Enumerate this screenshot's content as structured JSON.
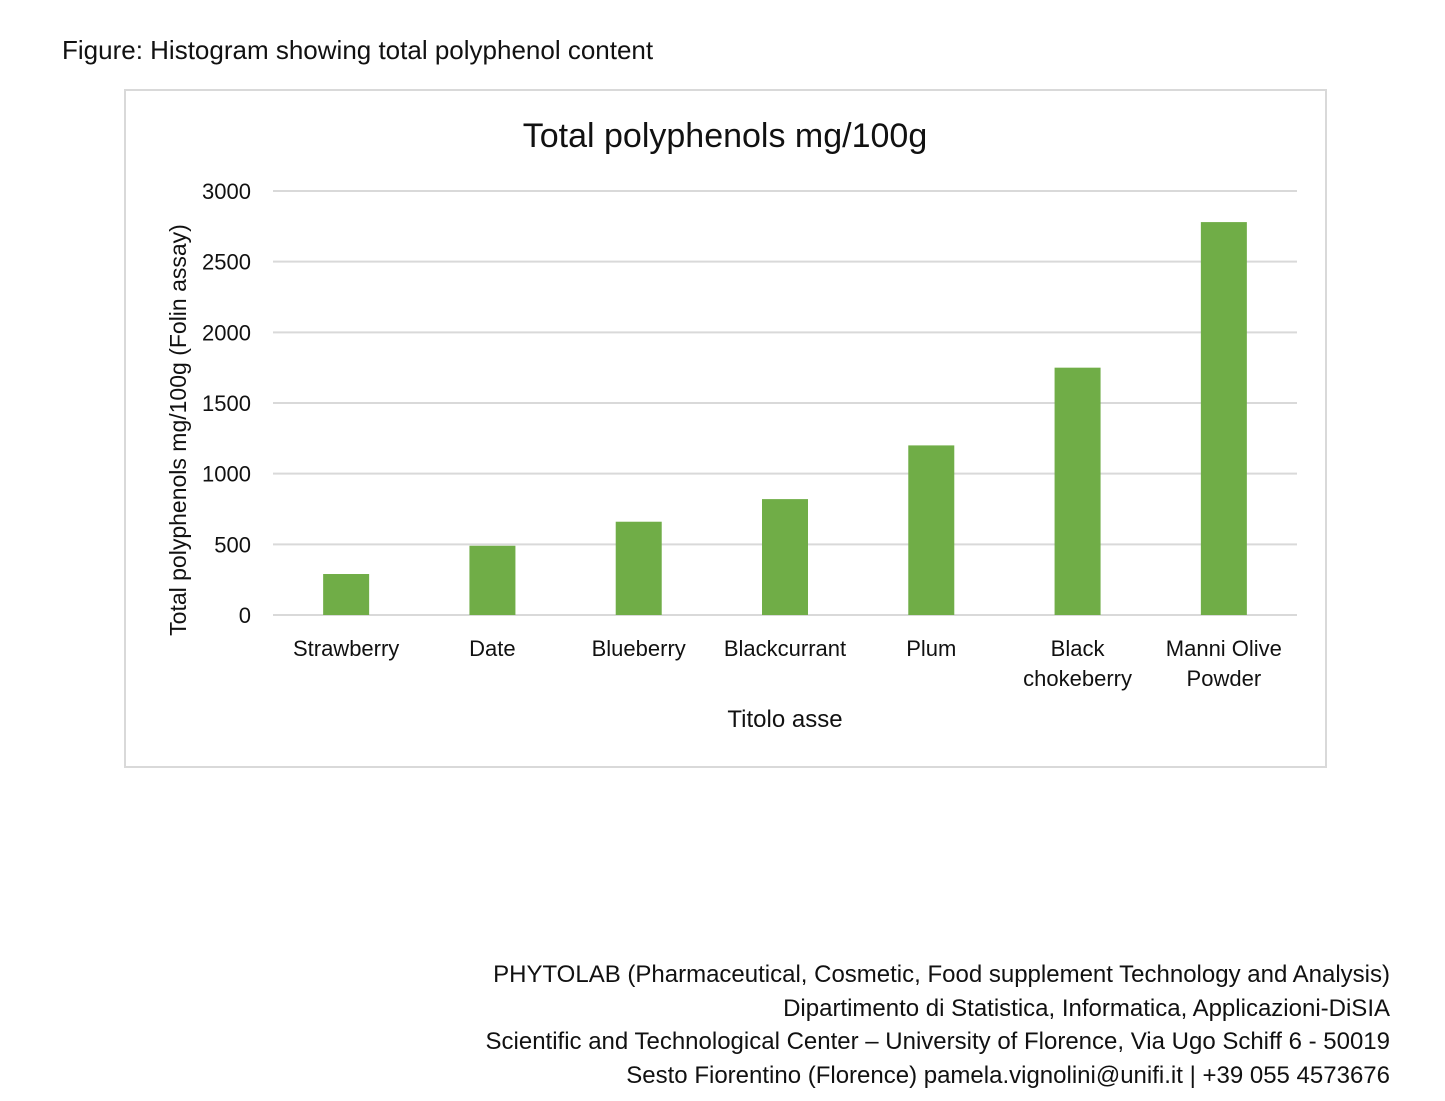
{
  "caption": "Figure: Histogram showing total polyphenol content",
  "chart_data": {
    "type": "bar",
    "title": "Total polyphenols mg/100g",
    "xlabel": "Titolo asse",
    "ylabel": "Total polyphenols mg/100g  (Folin assay)",
    "categories": [
      [
        "Strawberry"
      ],
      [
        "Date"
      ],
      [
        "Blueberry"
      ],
      [
        "Blackcurrant"
      ],
      [
        "Plum"
      ],
      [
        "Black",
        "chokeberry"
      ],
      [
        "Manni Olive",
        "Powder"
      ]
    ],
    "values": [
      290,
      490,
      660,
      820,
      1200,
      1750,
      2780
    ],
    "ylim": [
      0,
      3000
    ],
    "yticks": [
      0,
      500,
      1000,
      1500,
      2000,
      2500,
      3000
    ],
    "grid": true,
    "bar_color": "#70ad47",
    "grid_color": "#d9d9d9"
  },
  "footer": {
    "lines": [
      "PHYTOLAB (Pharmaceutical, Cosmetic, Food supplement Technology and Analysis)",
      "Dipartimento di Statistica, Informatica, Applicazioni-DiSIA",
      "Scientific and Technological Center – University of Florence, Via Ugo Schiff 6 - 50019",
      "Sesto Fiorentino (Florence) pamela.vignolini@unifi.it | +39 055 4573676"
    ]
  }
}
